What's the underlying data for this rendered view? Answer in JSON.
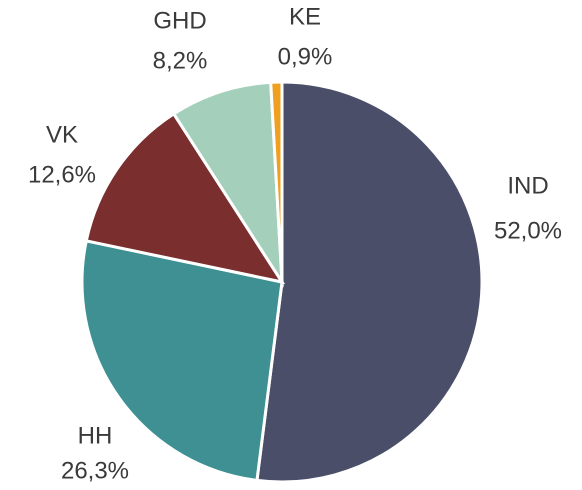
{
  "chart_data": {
    "type": "pie",
    "categories": [
      "IND",
      "HH",
      "VK",
      "GHD",
      "KE"
    ],
    "values": [
      52.0,
      26.3,
      12.6,
      8.2,
      0.9
    ],
    "value_labels": [
      "52,0%",
      "26,3%",
      "12,6%",
      "8,2%",
      "0,9%"
    ],
    "colors": [
      "#4a4e69",
      "#3f9093",
      "#7a2e2e",
      "#a3cfbb",
      "#f0a020"
    ]
  }
}
